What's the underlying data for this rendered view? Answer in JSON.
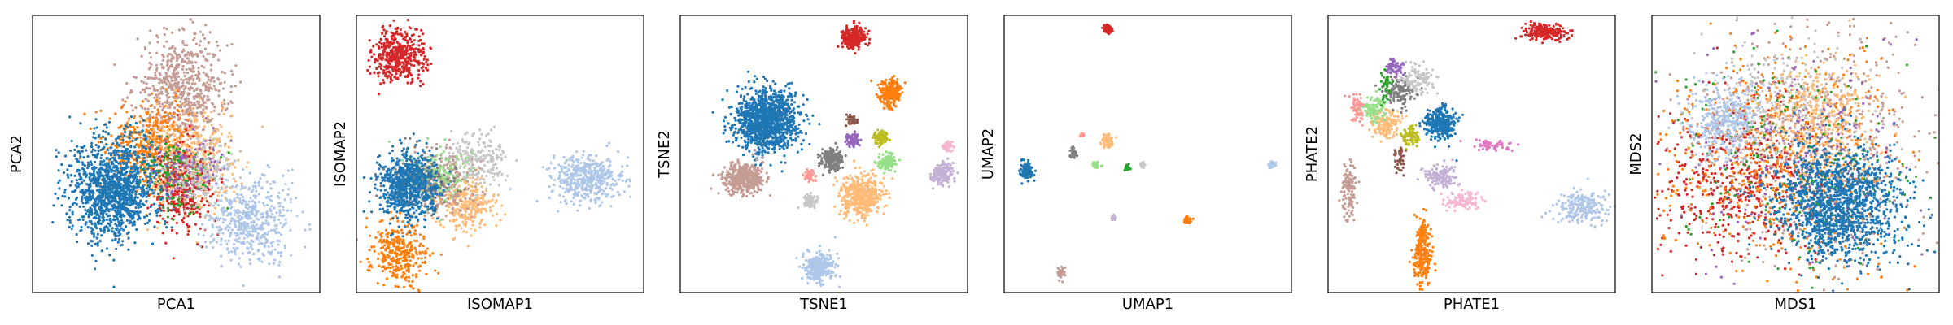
{
  "colors": {
    "blue": "#1f77b4",
    "light_blue": "#aec7e8",
    "orange": "#ff7f0e",
    "light_orange": "#ffbb78",
    "green": "#2ca02c",
    "light_green": "#98df8a",
    "red": "#d62728",
    "pink_light": "#ff9896",
    "purple": "#9467bd",
    "light_purple": "#c5b0d5",
    "brown": "#8c564b",
    "tan": "#c49c94",
    "pink": "#e377c2",
    "light_pink": "#f7b6d2",
    "gray": "#7f7f7f",
    "light_gray": "#c7c7c7",
    "olive": "#bcbd22",
    "light_olive": "#dbdb8d"
  },
  "chart_data": [
    {
      "type": "scatter",
      "xlabel": "PCA1",
      "ylabel": "PCA2",
      "xlim": [
        0,
        1
      ],
      "ylim": [
        0,
        1
      ],
      "ticks": "none",
      "clusters": [
        {
          "color": "tan",
          "x": 0.52,
          "y": 0.73,
          "sx": 0.08,
          "sy": 0.1,
          "n": 700
        },
        {
          "color": "orange",
          "x": 0.42,
          "y": 0.52,
          "sx": 0.08,
          "sy": 0.08,
          "n": 500
        },
        {
          "color": "light_orange",
          "x": 0.55,
          "y": 0.47,
          "sx": 0.08,
          "sy": 0.09,
          "n": 500
        },
        {
          "color": "red",
          "x": 0.52,
          "y": 0.38,
          "sx": 0.05,
          "sy": 0.08,
          "n": 300
        },
        {
          "color": "green",
          "x": 0.5,
          "y": 0.42,
          "sx": 0.06,
          "sy": 0.06,
          "n": 150
        },
        {
          "color": "purple",
          "x": 0.55,
          "y": 0.45,
          "sx": 0.06,
          "sy": 0.06,
          "n": 120
        },
        {
          "color": "light_gray",
          "x": 0.58,
          "y": 0.42,
          "sx": 0.06,
          "sy": 0.06,
          "n": 150
        },
        {
          "color": "light_blue",
          "x": 0.76,
          "y": 0.26,
          "sx": 0.07,
          "sy": 0.08,
          "n": 500
        },
        {
          "color": "blue",
          "x": 0.28,
          "y": 0.37,
          "sx": 0.075,
          "sy": 0.09,
          "n": 1300
        }
      ]
    },
    {
      "type": "scatter",
      "xlabel": "ISOMAP1",
      "ylabel": "ISOMAP2",
      "xlim": [
        0,
        1
      ],
      "ylim": [
        0,
        1
      ],
      "ticks": "none",
      "clusters": [
        {
          "color": "red",
          "x": 0.15,
          "y": 0.85,
          "sx": 0.045,
          "sy": 0.05,
          "n": 450
        },
        {
          "color": "light_blue",
          "x": 0.8,
          "y": 0.41,
          "sx": 0.06,
          "sy": 0.04,
          "n": 450
        },
        {
          "color": "orange",
          "x": 0.15,
          "y": 0.14,
          "sx": 0.05,
          "sy": 0.06,
          "n": 350
        },
        {
          "color": "light_orange",
          "x": 0.38,
          "y": 0.32,
          "sx": 0.05,
          "sy": 0.05,
          "n": 300
        },
        {
          "color": "tan",
          "x": 0.3,
          "y": 0.4,
          "sx": 0.06,
          "sy": 0.06,
          "n": 300
        },
        {
          "color": "light_gray",
          "x": 0.42,
          "y": 0.48,
          "sx": 0.05,
          "sy": 0.05,
          "n": 200
        },
        {
          "color": "light_green",
          "x": 0.28,
          "y": 0.42,
          "sx": 0.06,
          "sy": 0.05,
          "n": 150
        },
        {
          "color": "gray",
          "x": 0.22,
          "y": 0.4,
          "sx": 0.06,
          "sy": 0.05,
          "n": 200
        },
        {
          "color": "blue",
          "x": 0.18,
          "y": 0.38,
          "sx": 0.05,
          "sy": 0.06,
          "n": 700
        }
      ]
    },
    {
      "type": "scatter",
      "xlabel": "TSNE1",
      "ylabel": "TSNE2",
      "xlim": [
        0,
        1
      ],
      "ylim": [
        0,
        1
      ],
      "ticks": "none",
      "clusters": [
        {
          "color": "red",
          "x": 0.6,
          "y": 0.92,
          "sx": 0.02,
          "sy": 0.02,
          "n": 250
        },
        {
          "color": "orange",
          "x": 0.73,
          "y": 0.72,
          "sx": 0.02,
          "sy": 0.025,
          "n": 250
        },
        {
          "color": "blue",
          "x": 0.3,
          "y": 0.62,
          "sx": 0.055,
          "sy": 0.055,
          "n": 1300
        },
        {
          "color": "tan",
          "x": 0.22,
          "y": 0.41,
          "sx": 0.035,
          "sy": 0.03,
          "n": 400
        },
        {
          "color": "light_orange",
          "x": 0.63,
          "y": 0.35,
          "sx": 0.035,
          "sy": 0.035,
          "n": 500
        },
        {
          "color": "gray",
          "x": 0.53,
          "y": 0.48,
          "sx": 0.02,
          "sy": 0.02,
          "n": 200
        },
        {
          "color": "light_green",
          "x": 0.72,
          "y": 0.47,
          "sx": 0.015,
          "sy": 0.015,
          "n": 120
        },
        {
          "color": "light_purple",
          "x": 0.91,
          "y": 0.43,
          "sx": 0.02,
          "sy": 0.02,
          "n": 150
        },
        {
          "color": "olive",
          "x": 0.7,
          "y": 0.56,
          "sx": 0.012,
          "sy": 0.012,
          "n": 80
        },
        {
          "color": "purple",
          "x": 0.6,
          "y": 0.55,
          "sx": 0.012,
          "sy": 0.012,
          "n": 80
        },
        {
          "color": "light_gray",
          "x": 0.45,
          "y": 0.33,
          "sx": 0.012,
          "sy": 0.012,
          "n": 80
        },
        {
          "color": "pink_light",
          "x": 0.45,
          "y": 0.42,
          "sx": 0.01,
          "sy": 0.01,
          "n": 50
        },
        {
          "color": "light_pink",
          "x": 0.93,
          "y": 0.53,
          "sx": 0.01,
          "sy": 0.01,
          "n": 50
        },
        {
          "color": "light_blue",
          "x": 0.48,
          "y": 0.09,
          "sx": 0.025,
          "sy": 0.025,
          "n": 300
        },
        {
          "color": "brown",
          "x": 0.6,
          "y": 0.62,
          "sx": 0.01,
          "sy": 0.01,
          "n": 40
        }
      ]
    },
    {
      "type": "scatter",
      "xlabel": "UMAP1",
      "ylabel": "UMAP2",
      "xlim": [
        0,
        1
      ],
      "ylim": [
        0,
        1
      ],
      "ticks": "none",
      "clusters": [
        {
          "color": "red",
          "x": 0.36,
          "y": 0.95,
          "sx": 0.008,
          "sy": 0.008,
          "n": 60
        },
        {
          "color": "blue",
          "x": 0.08,
          "y": 0.44,
          "sx": 0.01,
          "sy": 0.015,
          "n": 150
        },
        {
          "color": "light_orange",
          "x": 0.36,
          "y": 0.55,
          "sx": 0.01,
          "sy": 0.012,
          "n": 80
        },
        {
          "color": "gray",
          "x": 0.24,
          "y": 0.5,
          "sx": 0.006,
          "sy": 0.01,
          "n": 40
        },
        {
          "color": "light_green",
          "x": 0.32,
          "y": 0.46,
          "sx": 0.006,
          "sy": 0.006,
          "n": 30
        },
        {
          "color": "green",
          "x": 0.43,
          "y": 0.45,
          "sx": 0.005,
          "sy": 0.005,
          "n": 30
        },
        {
          "color": "light_blue",
          "x": 0.93,
          "y": 0.46,
          "sx": 0.006,
          "sy": 0.006,
          "n": 40
        },
        {
          "color": "light_purple",
          "x": 0.38,
          "y": 0.27,
          "sx": 0.005,
          "sy": 0.005,
          "n": 30
        },
        {
          "color": "orange",
          "x": 0.64,
          "y": 0.26,
          "sx": 0.006,
          "sy": 0.006,
          "n": 40
        },
        {
          "color": "tan",
          "x": 0.2,
          "y": 0.07,
          "sx": 0.007,
          "sy": 0.01,
          "n": 50
        },
        {
          "color": "light_gray",
          "x": 0.48,
          "y": 0.46,
          "sx": 0.005,
          "sy": 0.005,
          "n": 25
        },
        {
          "color": "pink_light",
          "x": 0.27,
          "y": 0.57,
          "sx": 0.004,
          "sy": 0.004,
          "n": 15
        }
      ]
    },
    {
      "type": "scatter",
      "xlabel": "PHATE1",
      "ylabel": "PHATE2",
      "xlim": [
        0,
        1
      ],
      "ylim": [
        0,
        1
      ],
      "ticks": "none",
      "clusters": [
        {
          "color": "red",
          "x": 0.76,
          "y": 0.94,
          "sx": 0.04,
          "sy": 0.015,
          "n": 200
        },
        {
          "color": "blue",
          "x": 0.39,
          "y": 0.61,
          "sx": 0.03,
          "sy": 0.03,
          "n": 300
        },
        {
          "color": "light_blue",
          "x": 0.88,
          "y": 0.31,
          "sx": 0.05,
          "sy": 0.03,
          "n": 200
        },
        {
          "color": "orange",
          "x": 0.33,
          "y": 0.15,
          "sx": 0.015,
          "sy": 0.06,
          "n": 250
        },
        {
          "color": "light_orange",
          "x": 0.2,
          "y": 0.61,
          "sx": 0.025,
          "sy": 0.025,
          "n": 150
        },
        {
          "color": "light_green",
          "x": 0.16,
          "y": 0.66,
          "sx": 0.02,
          "sy": 0.02,
          "n": 100
        },
        {
          "color": "gray",
          "x": 0.25,
          "y": 0.73,
          "sx": 0.025,
          "sy": 0.025,
          "n": 120
        },
        {
          "color": "purple",
          "x": 0.23,
          "y": 0.81,
          "sx": 0.015,
          "sy": 0.015,
          "n": 60
        },
        {
          "color": "light_gray",
          "x": 0.32,
          "y": 0.76,
          "sx": 0.03,
          "sy": 0.03,
          "n": 100
        },
        {
          "color": "olive",
          "x": 0.29,
          "y": 0.57,
          "sx": 0.015,
          "sy": 0.02,
          "n": 80
        },
        {
          "color": "light_purple",
          "x": 0.39,
          "y": 0.42,
          "sx": 0.03,
          "sy": 0.02,
          "n": 150
        },
        {
          "color": "light_pink",
          "x": 0.47,
          "y": 0.33,
          "sx": 0.03,
          "sy": 0.015,
          "n": 100
        },
        {
          "color": "pink",
          "x": 0.57,
          "y": 0.53,
          "sx": 0.03,
          "sy": 0.01,
          "n": 60
        },
        {
          "color": "pink_light",
          "x": 0.1,
          "y": 0.66,
          "sx": 0.012,
          "sy": 0.03,
          "n": 60
        },
        {
          "color": "tan",
          "x": 0.07,
          "y": 0.37,
          "sx": 0.012,
          "sy": 0.05,
          "n": 120
        },
        {
          "color": "green",
          "x": 0.2,
          "y": 0.75,
          "sx": 0.01,
          "sy": 0.03,
          "n": 40
        },
        {
          "color": "brown",
          "x": 0.25,
          "y": 0.48,
          "sx": 0.01,
          "sy": 0.03,
          "n": 40
        }
      ]
    },
    {
      "type": "scatter",
      "xlabel": "MDS1",
      "ylabel": "MDS2",
      "xlim": [
        0,
        1
      ],
      "ylim": [
        0,
        1
      ],
      "ticks": "none",
      "clusters": [
        {
          "color": "tan",
          "x": 0.55,
          "y": 0.55,
          "sx": 0.2,
          "sy": 0.2,
          "n": 700
        },
        {
          "color": "red",
          "x": 0.3,
          "y": 0.4,
          "sx": 0.15,
          "sy": 0.15,
          "n": 500
        },
        {
          "color": "orange",
          "x": 0.45,
          "y": 0.48,
          "sx": 0.2,
          "sy": 0.2,
          "n": 600
        },
        {
          "color": "light_orange",
          "x": 0.58,
          "y": 0.62,
          "sx": 0.1,
          "sy": 0.1,
          "n": 400
        },
        {
          "color": "green",
          "x": 0.5,
          "y": 0.5,
          "sx": 0.2,
          "sy": 0.2,
          "n": 200
        },
        {
          "color": "purple",
          "x": 0.5,
          "y": 0.52,
          "sx": 0.2,
          "sy": 0.2,
          "n": 200
        },
        {
          "color": "light_gray",
          "x": 0.45,
          "y": 0.7,
          "sx": 0.15,
          "sy": 0.12,
          "n": 200
        },
        {
          "color": "light_blue",
          "x": 0.25,
          "y": 0.62,
          "sx": 0.06,
          "sy": 0.07,
          "n": 350
        },
        {
          "color": "blue",
          "x": 0.65,
          "y": 0.32,
          "sx": 0.11,
          "sy": 0.1,
          "n": 1400
        }
      ]
    }
  ]
}
